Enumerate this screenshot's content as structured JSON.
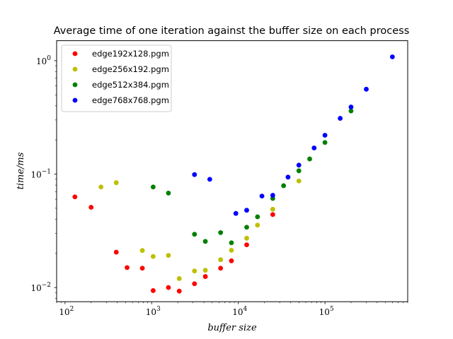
{
  "chart_data": {
    "type": "scatter",
    "title": "Average time of one iteration against the buffer size on each process",
    "xlabel": "buffer size",
    "ylabel": "time/ms",
    "xscale": "log",
    "yscale": "log",
    "xlim": [
      80,
      900000
    ],
    "ylim": [
      0.0075,
      1.5
    ],
    "xticks": [
      {
        "value": 100,
        "base": "10",
        "exp": "2"
      },
      {
        "value": 1000,
        "base": "10",
        "exp": "3"
      },
      {
        "value": 10000,
        "base": "10",
        "exp": "4"
      },
      {
        "value": 100000,
        "base": "10",
        "exp": "5"
      }
    ],
    "yticks": [
      {
        "value": 0.01,
        "base": "10",
        "exp": "−2"
      },
      {
        "value": 0.1,
        "base": "10",
        "exp": "−1"
      },
      {
        "value": 1,
        "base": "10",
        "exp": "0"
      }
    ],
    "legend_position": "top-left",
    "grid": false,
    "series": [
      {
        "name": "edge192x128.pgm",
        "color": "#ff0000",
        "points": [
          [
            130,
            0.063
          ],
          [
            200,
            0.051
          ],
          [
            390,
            0.0205
          ],
          [
            520,
            0.015
          ],
          [
            780,
            0.0148
          ],
          [
            1040,
            0.0094
          ],
          [
            1560,
            0.01
          ],
          [
            2080,
            0.0093
          ],
          [
            3120,
            0.0108
          ],
          [
            4160,
            0.0125
          ],
          [
            6240,
            0.0148
          ],
          [
            8320,
            0.0172
          ],
          [
            12480,
            0.0238
          ],
          [
            24960,
            0.044
          ]
        ]
      },
      {
        "name": "edge256x192.pgm",
        "color": "#bfbf00",
        "points": [
          [
            260,
            0.077
          ],
          [
            390,
            0.084
          ],
          [
            780,
            0.0212
          ],
          [
            1040,
            0.0188
          ],
          [
            1560,
            0.0192
          ],
          [
            2080,
            0.012
          ],
          [
            3120,
            0.014
          ],
          [
            4160,
            0.0142
          ],
          [
            6240,
            0.0176
          ],
          [
            8320,
            0.0213
          ],
          [
            12480,
            0.0272
          ],
          [
            16640,
            0.0355
          ],
          [
            24960,
            0.049
          ],
          [
            49920,
            0.087
          ]
        ]
      },
      {
        "name": "edge512x384.pgm",
        "color": "#008000",
        "points": [
          [
            1040,
            0.077
          ],
          [
            1560,
            0.068
          ],
          [
            3120,
            0.0295
          ],
          [
            4160,
            0.0255
          ],
          [
            6240,
            0.0305
          ],
          [
            8320,
            0.0248
          ],
          [
            12480,
            0.034
          ],
          [
            16640,
            0.042
          ],
          [
            24960,
            0.061
          ],
          [
            33280,
            0.079
          ],
          [
            49920,
            0.107
          ],
          [
            66560,
            0.136
          ],
          [
            99840,
            0.19
          ],
          [
            199680,
            0.36
          ]
        ]
      },
      {
        "name": "edge768x768.pgm",
        "color": "#0000ff",
        "points": [
          [
            3120,
            0.099
          ],
          [
            4680,
            0.09
          ],
          [
            9360,
            0.045
          ],
          [
            12480,
            0.048
          ],
          [
            18720,
            0.064
          ],
          [
            24960,
            0.065
          ],
          [
            37440,
            0.094
          ],
          [
            49920,
            0.12
          ],
          [
            74880,
            0.17
          ],
          [
            99840,
            0.22
          ],
          [
            149760,
            0.31
          ],
          [
            199680,
            0.39
          ],
          [
            299520,
            0.56
          ],
          [
            599040,
            1.08
          ]
        ]
      }
    ]
  }
}
